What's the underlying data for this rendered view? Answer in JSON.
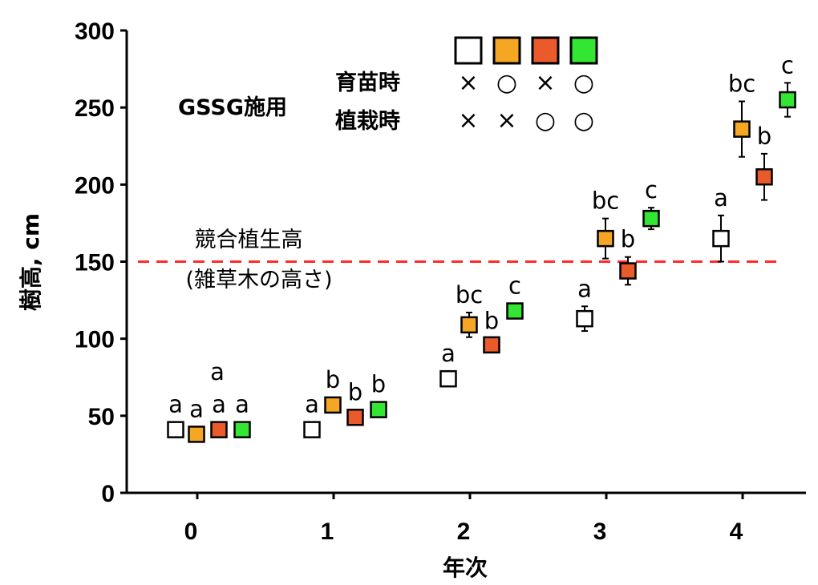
{
  "chart_data": {
    "type": "scatter",
    "ylabel": "樹高, cm",
    "xlabel": "年次",
    "ylim": [
      0,
      300
    ],
    "yticks": [
      "0",
      "50",
      "100",
      "150",
      "200",
      "250",
      "300"
    ],
    "categories": [
      "0",
      "1",
      "2",
      "3",
      "4"
    ],
    "reference_line": {
      "value": 150,
      "label_line1": "競合植生高",
      "label_line2": "(雑草木の高さ)",
      "color": "#ff2a2a"
    },
    "legend": {
      "title": "GSSG施用",
      "row_labels": [
        "育苗時",
        "植栽時"
      ],
      "placement": "top-center"
    },
    "series": [
      {
        "color": "#ffffff",
        "nursery": "×",
        "planting": "×",
        "values": [
          41,
          41,
          74,
          113,
          165
        ],
        "err": [
          0,
          0,
          0,
          8,
          15
        ],
        "letters": [
          "a",
          "a",
          "a",
          "a",
          "a"
        ]
      },
      {
        "color": "#f5a623",
        "nursery": "○",
        "planting": "×",
        "values": [
          38,
          57,
          109,
          165,
          236
        ],
        "err": [
          0,
          0,
          8,
          13,
          18
        ],
        "letters": [
          "a",
          "b",
          "bc",
          "bc",
          "bc"
        ]
      },
      {
        "color": "#ea5a2a",
        "nursery": "×",
        "planting": "○",
        "values": [
          41,
          49,
          96,
          144,
          205
        ],
        "err": [
          0,
          0,
          4,
          9,
          15
        ],
        "letters": [
          "a",
          "b",
          "b",
          "b",
          "b"
        ]
      },
      {
        "color": "#33e633",
        "nursery": "○",
        "planting": "○",
        "values": [
          41,
          54,
          118,
          178,
          255
        ],
        "err": [
          0,
          0,
          0,
          7,
          11
        ],
        "letters": [
          "a",
          "b",
          "c",
          "c",
          "c"
        ]
      }
    ],
    "letter_stack_first_year": "a"
  }
}
